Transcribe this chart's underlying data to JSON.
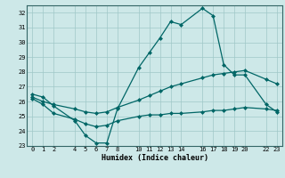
{
  "xlabel": "Humidex (Indice chaleur)",
  "x_ticks": [
    0,
    1,
    2,
    4,
    5,
    6,
    7,
    8,
    10,
    11,
    12,
    13,
    14,
    16,
    17,
    18,
    19,
    20,
    22,
    23
  ],
  "xlim": [
    -0.5,
    23.5
  ],
  "ylim": [
    23,
    32.5
  ],
  "y_ticks": [
    23,
    24,
    25,
    26,
    27,
    28,
    29,
    30,
    31,
    32
  ],
  "bg_color": "#cde8e8",
  "grid_color": "#a0c8c8",
  "line_color": "#006666",
  "line_max_x": [
    0,
    1,
    2,
    4,
    5,
    6,
    7,
    8,
    10,
    11,
    12,
    13,
    14,
    16,
    17,
    18,
    19,
    20,
    22,
    23
  ],
  "line_max_y": [
    26.5,
    26.3,
    25.7,
    24.7,
    23.7,
    23.2,
    23.2,
    25.5,
    28.3,
    29.3,
    30.3,
    31.4,
    31.2,
    32.3,
    31.8,
    28.5,
    27.8,
    27.8,
    25.8,
    25.3
  ],
  "line_mean_x": [
    0,
    1,
    2,
    4,
    5,
    6,
    7,
    8,
    10,
    11,
    12,
    13,
    14,
    16,
    17,
    18,
    19,
    20,
    22,
    23
  ],
  "line_mean_y": [
    26.3,
    26.0,
    25.8,
    25.5,
    25.3,
    25.2,
    25.3,
    25.6,
    26.1,
    26.4,
    26.7,
    27.0,
    27.2,
    27.6,
    27.8,
    27.9,
    28.0,
    28.1,
    27.5,
    27.2
  ],
  "line_min_x": [
    0,
    1,
    2,
    4,
    5,
    6,
    7,
    8,
    10,
    11,
    12,
    13,
    14,
    16,
    17,
    18,
    19,
    20,
    22,
    23
  ],
  "line_min_y": [
    26.2,
    25.8,
    25.2,
    24.8,
    24.5,
    24.3,
    24.4,
    24.7,
    25.0,
    25.1,
    25.1,
    25.2,
    25.2,
    25.3,
    25.4,
    25.4,
    25.5,
    25.6,
    25.5,
    25.4
  ]
}
